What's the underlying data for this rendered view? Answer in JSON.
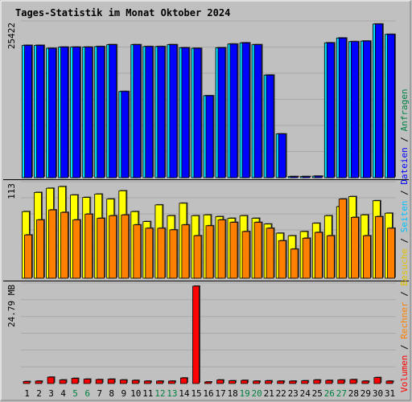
{
  "chart_data": {
    "type": "bar",
    "title": "Tages-Statistik im Monat Oktober 2024",
    "days": [
      "1",
      "2",
      "3",
      "4",
      "5",
      "6",
      "7",
      "8",
      "9",
      "10",
      "11",
      "12",
      "13",
      "14",
      "15",
      "16",
      "17",
      "18",
      "19",
      "20",
      "21",
      "22",
      "23",
      "24",
      "25",
      "26",
      "27",
      "28",
      "29",
      "30",
      "31"
    ],
    "weekend_days": [
      "5",
      "6",
      "12",
      "13",
      "19",
      "20",
      "26",
      "27"
    ],
    "colors": {
      "background": "#c0c0c0",
      "title": "#0000ff",
      "weekday_label": "#000000",
      "weekend_label": "#008040",
      "anfragen": "#00e0ff",
      "dateien": "#0000ff",
      "seiten": "#00c0ff",
      "besuche": "#ffff00",
      "rechner": "#ff8000",
      "volumen": "#ff0000",
      "legend_anfragen": "#008040",
      "legend_dateien": "#0000ff",
      "legend_seiten": "#00c0ff",
      "legend_besuche": "#e0c000",
      "legend_rechner": "#ff8000",
      "legend_volumen": "#ff0000",
      "separator": "#000000"
    },
    "legend_right": [
      {
        "text": "Volumen",
        "color_key": "legend_volumen"
      },
      {
        "text": "Rechner",
        "color_key": "legend_rechner"
      },
      {
        "text": "Besuche",
        "color_key": "legend_besuche"
      },
      {
        "text": "Seiten",
        "color_key": "legend_seiten"
      },
      {
        "text": "Dateien",
        "color_key": "legend_dateien"
      },
      {
        "text": "Anfragen",
        "color_key": "legend_anfragen"
      }
    ],
    "panels": [
      {
        "name": "hits",
        "y_label": "25422",
        "y_max": 25422,
        "series": [
          {
            "name": "Anfragen",
            "color_key": "anfragen",
            "values": [
              21800,
              21800,
              21300,
              21500,
              21500,
              21500,
              21600,
              21900,
              14200,
              21900,
              21600,
              21600,
              21900,
              21400,
              21300,
              13500,
              21400,
              22000,
              22200,
              21900,
              16900,
              7200,
              180,
              180,
              250,
              22200,
              23000,
              22400,
              22500,
              25300,
              23600
            ]
          },
          {
            "name": "Dateien",
            "color_key": "dateien",
            "values": [
              21800,
              21800,
              21300,
              21500,
              21500,
              21500,
              21600,
              21900,
              14200,
              21900,
              21600,
              21600,
              21900,
              21400,
              21300,
              13500,
              21400,
              22000,
              22200,
              21900,
              16900,
              7200,
              180,
              180,
              250,
              22200,
              23000,
              22400,
              22500,
              25300,
              23600
            ]
          }
        ]
      },
      {
        "name": "visits",
        "y_label": "113",
        "y_max": 113,
        "series": [
          {
            "name": "Besuche",
            "color_key": "besuche",
            "values": [
              80,
              103,
              108,
              110,
              100,
              97,
              101,
              95,
              105,
              80,
              68,
              88,
              75,
              90,
              75,
              76,
              74,
              72,
              75,
              72,
              65,
              54,
              51,
              56,
              66,
              75,
              86,
              98,
              76,
              93,
              78
            ]
          },
          {
            "name": "Rechner",
            "color_key": "rechner",
            "values": [
              52,
              70,
              82,
              79,
              70,
              77,
              72,
              75,
              76,
              64,
              60,
              60,
              58,
              64,
              51,
              63,
              70,
              67,
              56,
              67,
              60,
              45,
              35,
              48,
              55,
              51,
              95,
              73,
              51,
              74,
              60
            ]
          }
        ]
      },
      {
        "name": "volume",
        "y_label": "24.79 MB",
        "y_max": 24.79,
        "series": [
          {
            "name": "Volumen",
            "color_key": "volumen",
            "values": [
              0.5,
              0.6,
              1.6,
              0.9,
              1.3,
              1.1,
              1.0,
              1.1,
              0.9,
              0.8,
              0.6,
              0.6,
              0.6,
              1.4,
              24.6,
              0.4,
              0.9,
              0.7,
              0.8,
              0.6,
              0.7,
              0.6,
              0.6,
              0.7,
              0.9,
              0.8,
              0.9,
              1.0,
              0.6,
              1.5,
              0.6
            ]
          }
        ]
      }
    ]
  }
}
